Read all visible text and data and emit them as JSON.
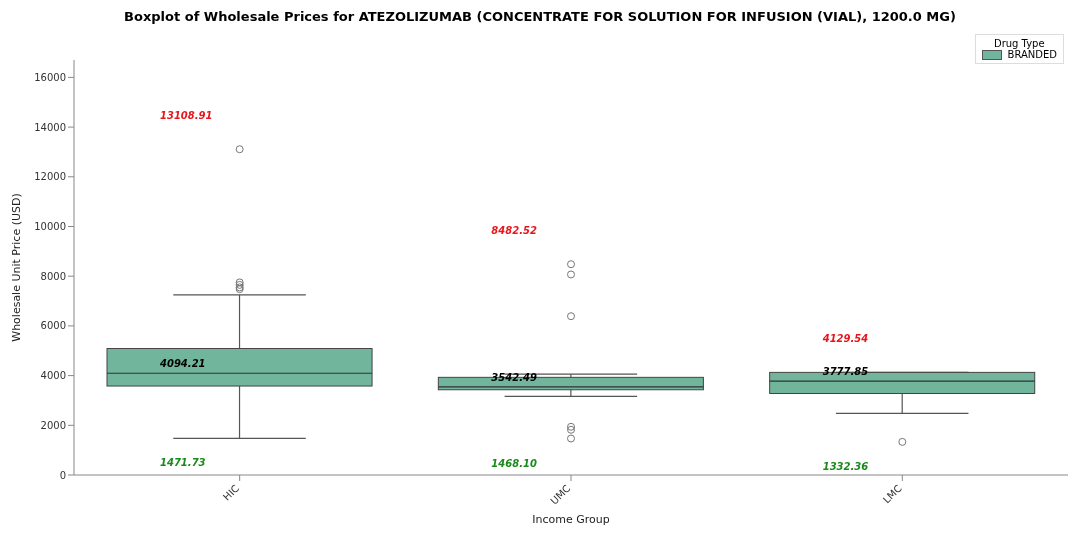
{
  "chart_data": {
    "type": "box",
    "title": "Boxplot of Wholesale Prices for ATEZOLIZUMAB (CONCENTRATE FOR SOLUTION FOR INFUSION (VIAL), 1200.0 MG)",
    "xlabel": "Income Group",
    "ylabel": "Wholesale Unit Price (USD)",
    "legend_title": "Drug Type",
    "legend": "top right",
    "grid": false,
    "marker": "circle",
    "categories": [
      "HIC",
      "UMC",
      "LMC"
    ],
    "ylim": [
      0,
      16700
    ],
    "yticks": [
      0,
      2000,
      4000,
      6000,
      8000,
      10000,
      12000,
      14000,
      16000
    ],
    "series": [
      {
        "name": "BRANDED",
        "color": "#72b59d",
        "boxes": [
          {
            "low": 1471.73,
            "q1": 3580,
            "median": 4094.21,
            "q3": 5090,
            "high": 7250,
            "outliers": [
              13108.91,
              7750,
              7650,
              7550,
              7480
            ]
          },
          {
            "low": 3160,
            "q1": 3430,
            "median": 3542.49,
            "q3": 3930,
            "high": 4060,
            "outliers": [
              8482.52,
              8070,
              6390,
              1940,
              1820,
              1468.1
            ]
          },
          {
            "low": 2480,
            "q1": 3280,
            "median": 3777.85,
            "q3": 4129.54,
            "high": 4129.54,
            "outliers": [
              1332.36
            ]
          }
        ]
      }
    ],
    "annotations": [
      "13108.91",
      "4094.21",
      "1471.73",
      "8482.52",
      "3542.49",
      "1468.10",
      "4129.54",
      "3777.85",
      "1332.36"
    ]
  }
}
